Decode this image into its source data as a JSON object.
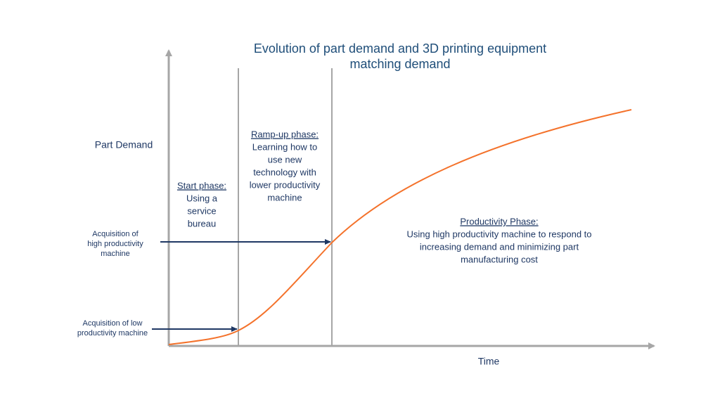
{
  "title": [
    "Evolution of part demand and 3D printing equipment",
    "matching demand"
  ],
  "y_axis_label": "Part Demand",
  "x_axis_label": "Time",
  "phases": [
    {
      "heading": "Start phase:",
      "body": [
        "Using a",
        "service",
        "bureau"
      ]
    },
    {
      "heading": "Ramp-up phase:",
      "body": [
        "Learning how to",
        "use new",
        "technology with",
        "lower productivity",
        "machine"
      ]
    },
    {
      "heading": "Productivity Phase:",
      "body": [
        "Using high productivity machine to respond to",
        "increasing demand and minimizing part",
        "manufacturing cost"
      ]
    }
  ],
  "annotations": [
    {
      "lines": [
        "Acquisition  of",
        "high productivity",
        "machine"
      ]
    },
    {
      "lines": [
        "Acquisition of low",
        "productivity machine"
      ]
    }
  ]
}
